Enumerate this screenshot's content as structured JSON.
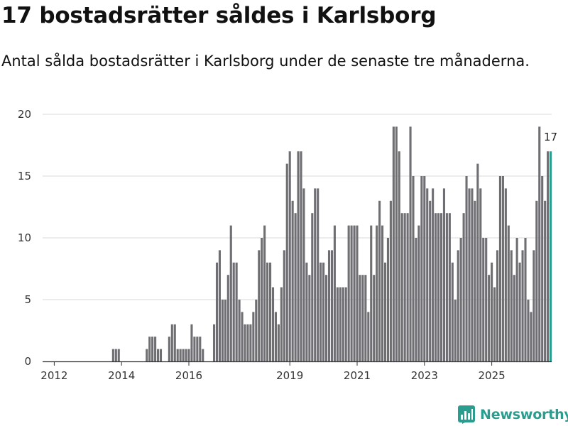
{
  "title": "17 bostadsrätter såldes i Karlsborg",
  "subtitle": "Antal sålda bostadsrätter i Karlsborg under de senaste tre månaderna.",
  "brand": {
    "name": "Newsworthy",
    "color": "#2a9d8f",
    "icon": "newsworthy-logo-icon"
  },
  "colors": {
    "bar": "#6e6e73",
    "highlight": "#2a9d8f",
    "grid": "#d9d9d9",
    "axis": "#333333"
  },
  "chart_data": {
    "type": "bar",
    "title": "17 bostadsrätter såldes i Karlsborg",
    "xlabel": "",
    "ylabel": "",
    "ylim": [
      0,
      20
    ],
    "y_ticks": [
      0,
      5,
      10,
      15,
      20
    ],
    "grid": true,
    "start_month": "2011-10",
    "x_ticks": [
      {
        "label": "2012",
        "month": "2012-01"
      },
      {
        "label": "2014",
        "month": "2014-01"
      },
      {
        "label": "2016",
        "month": "2016-01"
      },
      {
        "label": "2019",
        "month": "2019-01"
      },
      {
        "label": "2021",
        "month": "2021-01"
      },
      {
        "label": "2023",
        "month": "2023-01"
      },
      {
        "label": "2025",
        "month": "2025-01"
      }
    ],
    "values": [
      0,
      0,
      0,
      0,
      0,
      0,
      0,
      0,
      0,
      0,
      0,
      0,
      0,
      0,
      0,
      0,
      0,
      0,
      0,
      0,
      0,
      0,
      0,
      0,
      1,
      1,
      1,
      0,
      0,
      0,
      0,
      0,
      0,
      0,
      0,
      0,
      1,
      2,
      2,
      2,
      1,
      1,
      0,
      0,
      2,
      3,
      3,
      1,
      1,
      1,
      1,
      1,
      3,
      2,
      2,
      2,
      1,
      0,
      0,
      0,
      3,
      8,
      9,
      5,
      5,
      7,
      11,
      8,
      8,
      5,
      4,
      3,
      3,
      3,
      4,
      5,
      9,
      10,
      11,
      8,
      8,
      6,
      4,
      3,
      6,
      9,
      16,
      17,
      13,
      12,
      17,
      17,
      14,
      8,
      7,
      12,
      14,
      14,
      8,
      8,
      7,
      9,
      9,
      11,
      6,
      6,
      6,
      6,
      11,
      11,
      11,
      11,
      7,
      7,
      7,
      4,
      11,
      7,
      11,
      13,
      11,
      8,
      10,
      13,
      19,
      19,
      17,
      12,
      12,
      12,
      19,
      15,
      10,
      11,
      15,
      15,
      14,
      13,
      14,
      12,
      12,
      12,
      14,
      12,
      12,
      8,
      5,
      9,
      10,
      12,
      15,
      14,
      14,
      13,
      16,
      14,
      10,
      10,
      7,
      8,
      6,
      9,
      15,
      15,
      14,
      11,
      9,
      7,
      10,
      8,
      9,
      10,
      5,
      4,
      9,
      13,
      19,
      15,
      13,
      17,
      17
    ],
    "highlight_last": true,
    "last_value_label": "17"
  }
}
